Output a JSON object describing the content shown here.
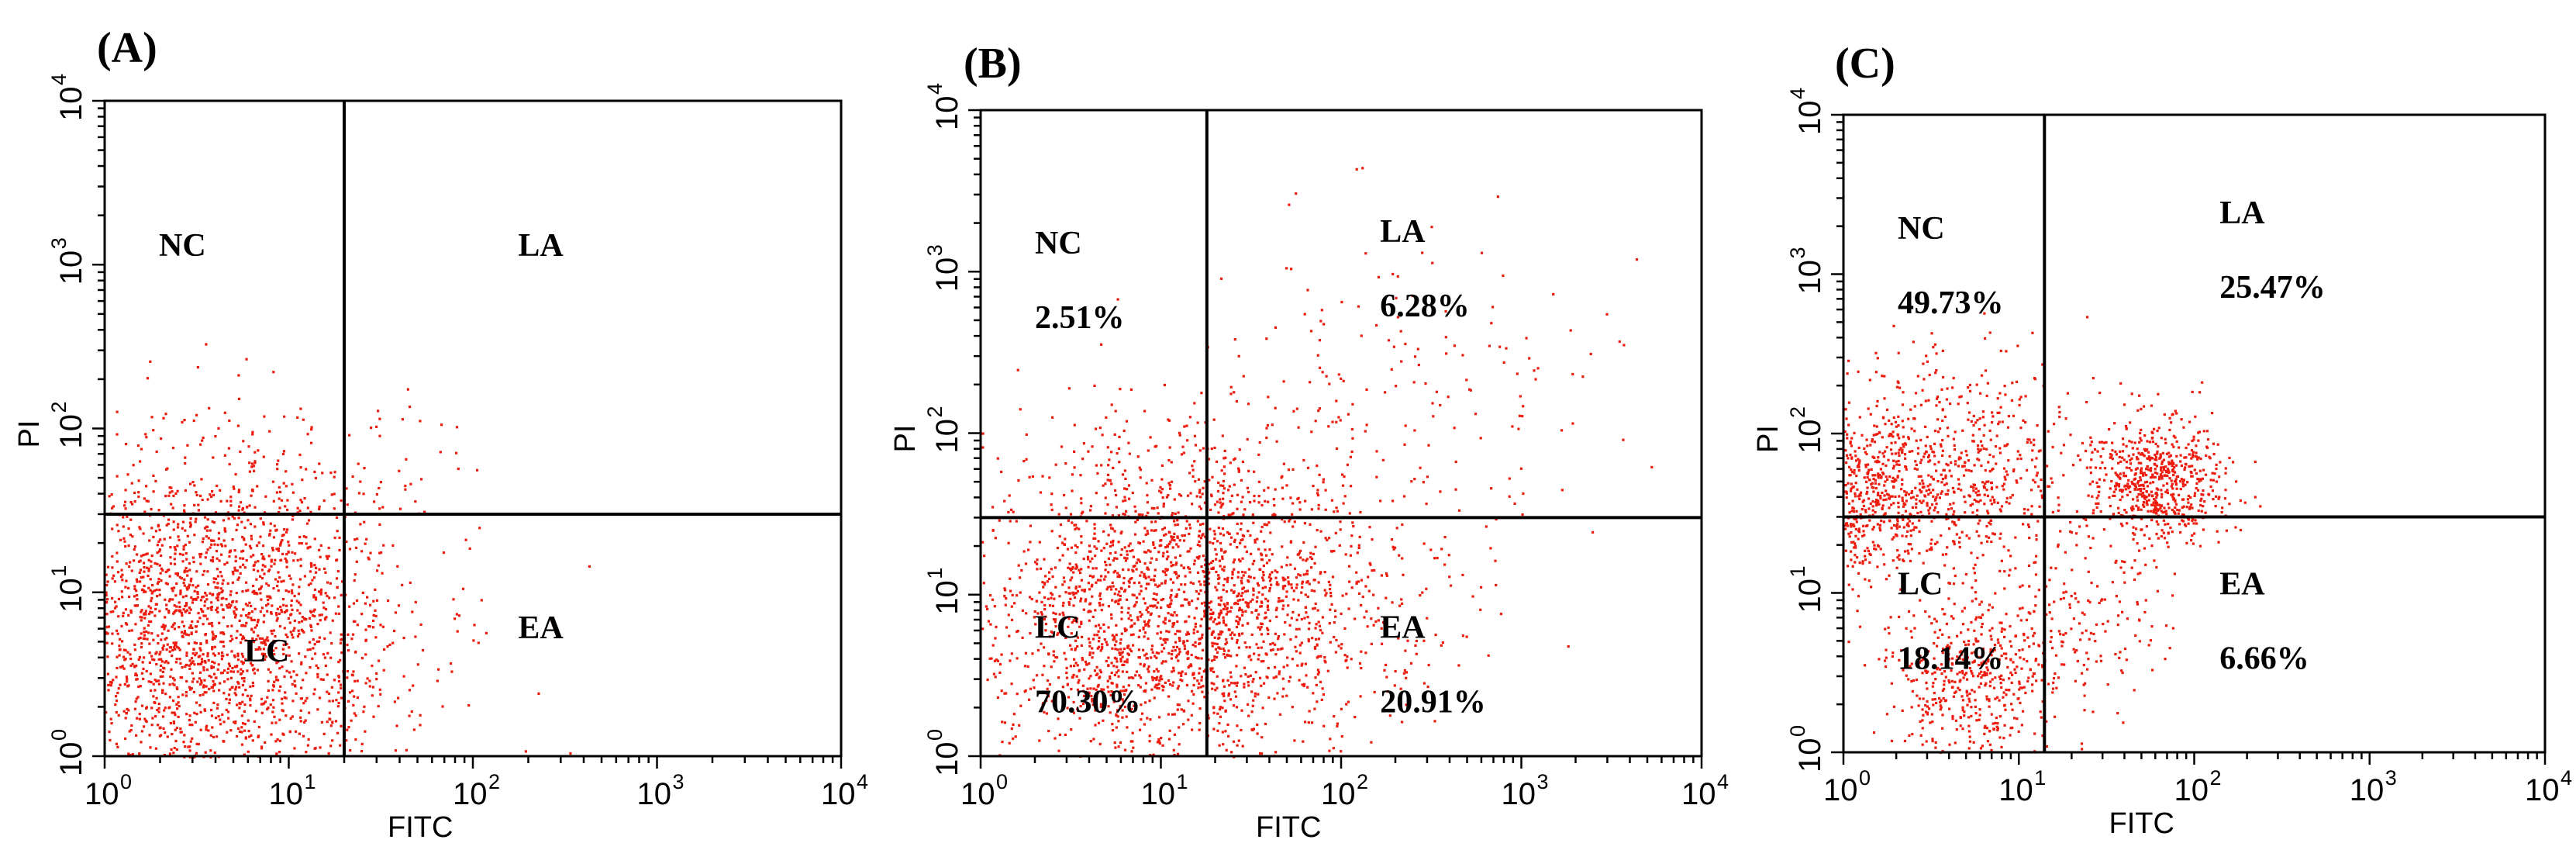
{
  "chart_data": [
    {
      "type": "scatter",
      "panel_label": "(A)",
      "xlabel": "FITC",
      "ylabel": "PI",
      "x_scale": "log",
      "y_scale": "log",
      "xlim": [
        1,
        10000
      ],
      "ylim": [
        1,
        10000
      ],
      "x_ticks": [
        {
          "base": "10",
          "exp": "0"
        },
        {
          "base": "10",
          "exp": "1"
        },
        {
          "base": "10",
          "exp": "2"
        },
        {
          "base": "10",
          "exp": "3"
        },
        {
          "base": "10",
          "exp": "4"
        }
      ],
      "y_ticks": [
        {
          "base": "10",
          "exp": "0"
        },
        {
          "base": "10",
          "exp": "1"
        },
        {
          "base": "10",
          "exp": "2"
        },
        {
          "base": "10",
          "exp": "3"
        },
        {
          "base": "10",
          "exp": "4"
        }
      ],
      "gate_x": 20,
      "gate_y": 30,
      "quadrants": {
        "NC": {
          "name": "NC",
          "percent": ""
        },
        "LA": {
          "name": "LA",
          "percent": ""
        },
        "LC": {
          "name": "LC",
          "percent": ""
        },
        "EA": {
          "name": "EA",
          "percent": ""
        }
      },
      "point_color": "#ee1c0e",
      "populations": [
        {
          "x_center": 3.5,
          "y_center": 6,
          "spread": 0.55,
          "fraction": 0.985
        },
        {
          "x_center": 14,
          "y_center": 20,
          "spread": 0.35,
          "fraction": 0.01
        },
        {
          "x_center": 40,
          "y_center": 110,
          "spread": 0.2,
          "fraction": 0.005
        }
      ]
    },
    {
      "type": "scatter",
      "panel_label": "(B)",
      "xlabel": "FITC",
      "ylabel": "PI",
      "x_scale": "log",
      "y_scale": "log",
      "xlim": [
        1,
        10000
      ],
      "ylim": [
        1,
        10000
      ],
      "x_ticks": [
        {
          "base": "10",
          "exp": "0"
        },
        {
          "base": "10",
          "exp": "1"
        },
        {
          "base": "10",
          "exp": "2"
        },
        {
          "base": "10",
          "exp": "3"
        },
        {
          "base": "10",
          "exp": "4"
        }
      ],
      "y_ticks": [
        {
          "base": "10",
          "exp": "0"
        },
        {
          "base": "10",
          "exp": "1"
        },
        {
          "base": "10",
          "exp": "2"
        },
        {
          "base": "10",
          "exp": "3"
        },
        {
          "base": "10",
          "exp": "4"
        }
      ],
      "gate_x": 18,
      "gate_y": 30,
      "quadrants": {
        "NC": {
          "name": "NC",
          "percent": "2.51%"
        },
        "LA": {
          "name": "LA",
          "percent": "6.28%"
        },
        "LC": {
          "name": "LC",
          "percent": "70.30%"
        },
        "EA": {
          "name": "EA",
          "percent": "20.91%"
        }
      },
      "point_color": "#ee1c0e",
      "populations": [
        {
          "x_center": 9,
          "y_center": 8,
          "spread": 0.5,
          "fraction": 0.703
        },
        {
          "x_center": 45,
          "y_center": 10,
          "spread": 0.45,
          "fraction": 0.209
        },
        {
          "x_center": 250,
          "y_center": 150,
          "spread": 0.55,
          "fraction": 0.063
        },
        {
          "x_center": 8,
          "y_center": 80,
          "spread": 0.3,
          "fraction": 0.025
        }
      ]
    },
    {
      "type": "scatter",
      "panel_label": "(C)",
      "xlabel": "FITC",
      "ylabel": "PI",
      "x_scale": "log",
      "y_scale": "log",
      "xlim": [
        1,
        10000
      ],
      "ylim": [
        1,
        10000
      ],
      "x_ticks": [
        {
          "base": "10",
          "exp": "0"
        },
        {
          "base": "10",
          "exp": "1"
        },
        {
          "base": "10",
          "exp": "2"
        },
        {
          "base": "10",
          "exp": "3"
        },
        {
          "base": "10",
          "exp": "4"
        }
      ],
      "y_ticks": [
        {
          "base": "10",
          "exp": "0"
        },
        {
          "base": "10",
          "exp": "1"
        },
        {
          "base": "10",
          "exp": "2"
        },
        {
          "base": "10",
          "exp": "3"
        },
        {
          "base": "10",
          "exp": "4"
        }
      ],
      "gate_x": 14,
      "gate_y": 30,
      "quadrants": {
        "NC": {
          "name": "NC",
          "percent": "49.73%"
        },
        "LA": {
          "name": "LA",
          "percent": "25.47%"
        },
        "LC": {
          "name": "LC",
          "percent": "18.14%"
        },
        "EA": {
          "name": "EA",
          "percent": "6.66%"
        }
      },
      "point_color": "#ee1c0e",
      "populations": [
        {
          "x_center": 1.05,
          "y_center": 40,
          "spread": 0.25,
          "fraction": 0.25
        },
        {
          "x_center": 4,
          "y_center": 60,
          "spread": 0.35,
          "fraction": 0.25
        },
        {
          "x_center": 60,
          "y_center": 50,
          "spread": 0.2,
          "fraction": 0.25
        },
        {
          "x_center": 5,
          "y_center": 3,
          "spread": 0.25,
          "fraction": 0.18
        },
        {
          "x_center": 20,
          "y_center": 8,
          "spread": 0.3,
          "fraction": 0.07
        }
      ]
    }
  ]
}
